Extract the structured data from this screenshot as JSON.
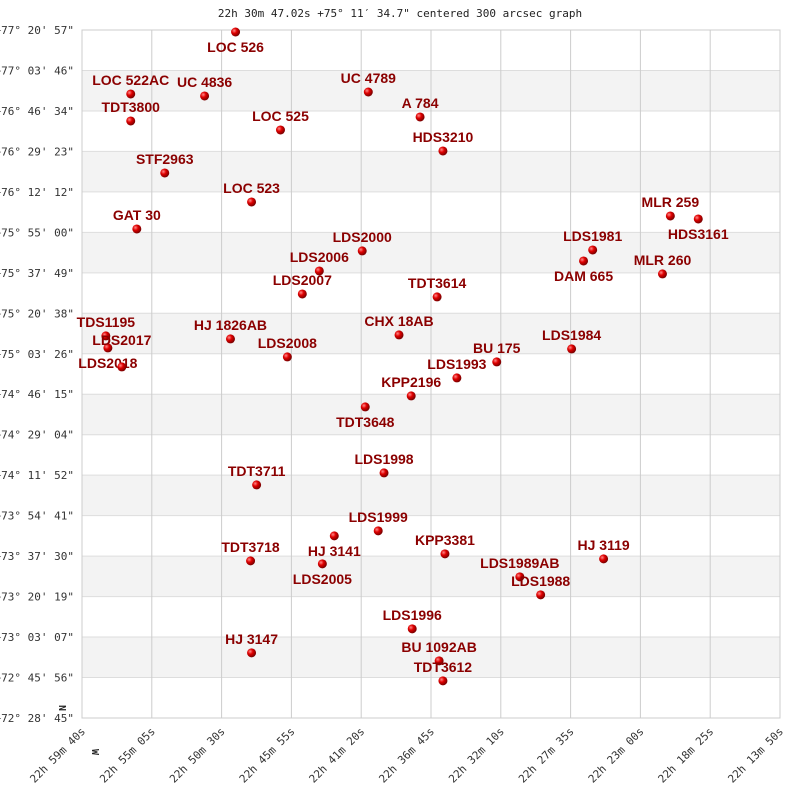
{
  "chart_data": {
    "type": "scatter",
    "title": "22h 30m 47.02s +75° 11′ 34.7\" centered 300 arcsec graph",
    "x_ticks": [
      "22h 59m 40s",
      "22h 55m 05s",
      "22h 50m 30s",
      "22h 45m 55s",
      "22h 41m 20s",
      "22h 36m 45s",
      "22h 32m 10s",
      "22h 27m 35s",
      "22h 23m 00s",
      "22h 18m 25s",
      "22h 13m 50s"
    ],
    "y_ticks": [
      "+77° 20' 57\"",
      "+77° 03' 46\"",
      "+76° 46' 34\"",
      "+76° 29' 23\"",
      "+76° 12' 12\"",
      "+75° 55' 00\"",
      "+75° 37' 49\"",
      "+75° 20' 38\"",
      "+75° 03' 26\"",
      "+74° 46' 15\"",
      "+74° 29' 04\"",
      "+74° 11' 52\"",
      "+73° 54' 41\"",
      "+73° 37' 30\"",
      "+73° 20' 19\"",
      "+73° 03' 07\"",
      "+72° 45' 56\"",
      "+72° 28' 45\""
    ],
    "x_direction": "RA decreasing to the right",
    "grid": true,
    "compass": {
      "north": "N",
      "west": "W"
    },
    "colors": {
      "point": "#dd0000",
      "label": "#8b0000",
      "band": "#f3f3f3",
      "grid": "#cccccc"
    },
    "points": [
      {
        "name": "LOC 526",
        "ra": "22h 49m 35s",
        "dec": "+77° 20' 06\""
      },
      {
        "name": "LOC 522AC",
        "ra": "22h 56m 28s",
        "dec": "+76° 53' 47\""
      },
      {
        "name": "UC 4836",
        "ra": "22h 51m 37s",
        "dec": "+76° 52' 56\""
      },
      {
        "name": "UC 4789",
        "ra": "22h 40m 52s",
        "dec": "+76° 54' 37\""
      },
      {
        "name": "A  784",
        "ra": "22h 37m 28s",
        "dec": "+76° 44' 01\""
      },
      {
        "name": "TDT3800",
        "ra": "22h 56m 28s",
        "dec": "+76° 42' 19\""
      },
      {
        "name": "LOC 525",
        "ra": "22h 46m 38s",
        "dec": "+76° 38' 29\""
      },
      {
        "name": "HDS3210",
        "ra": "22h 35m 58s",
        "dec": "+76° 29' 34\""
      },
      {
        "name": "STF2963",
        "ra": "22h 54m 14s",
        "dec": "+76° 20' 14\""
      },
      {
        "name": "LOC 523",
        "ra": "22h 48m 32s",
        "dec": "+76° 07' 55\""
      },
      {
        "name": "MLR 259",
        "ra": "22h 21m 02s",
        "dec": "+76° 01' 58\""
      },
      {
        "name": "HDS3161",
        "ra": "22h 19m 12s",
        "dec": "+76° 00' 42\""
      },
      {
        "name": "GAT  30",
        "ra": "22h 56m 04s",
        "dec": "+75° 56' 27\""
      },
      {
        "name": "LDS2000",
        "ra": "22h 41m 16s",
        "dec": "+75° 47' 07\""
      },
      {
        "name": "LDS1981",
        "ra": "22h 26m 08s",
        "dec": "+75° 47' 32\""
      },
      {
        "name": "DAM 665",
        "ra": "22h 26m 44s",
        "dec": "+75° 42' 52\""
      },
      {
        "name": "LDS2006",
        "ra": "22h 44m 05s",
        "dec": "+75° 38' 37\""
      },
      {
        "name": "MLR 260",
        "ra": "22h 21m 33s",
        "dec": "+75° 37' 21\""
      },
      {
        "name": "LDS2007",
        "ra": "22h 45m 12s",
        "dec": "+75° 28' 51\""
      },
      {
        "name": "TDT3614",
        "ra": "22h 36m 21s",
        "dec": "+75° 27' 35\""
      },
      {
        "name": "HJ 1826AB",
        "ra": "22h 49m 55s",
        "dec": "+75° 09' 45\""
      },
      {
        "name": "CHX 18AB",
        "ra": "22h 38m 51s",
        "dec": "+75° 11' 27\""
      },
      {
        "name": "TDS1195",
        "ra": "22h 58m 06s",
        "dec": "+75° 11' 01\""
      },
      {
        "name": "LDS2018",
        "ra": "22h 57m 58s",
        "dec": "+75° 05' 56\""
      },
      {
        "name": "LDS2017",
        "ra": "22h 57m 03s",
        "dec": "+74° 57' 52\""
      },
      {
        "name": "LDS2008",
        "ra": "22h 46m 11s",
        "dec": "+75° 02' 06\""
      },
      {
        "name": "LDS1984",
        "ra": "22h 27m 31s",
        "dec": "+75° 05' 30\""
      },
      {
        "name": "BU  175",
        "ra": "22h 32m 26s",
        "dec": "+74° 59' 59\""
      },
      {
        "name": "LDS1993",
        "ra": "22h 35m 03s",
        "dec": "+74° 53' 11\""
      },
      {
        "name": "KPP2196",
        "ra": "22h 38m 03s",
        "dec": "+74° 45' 33\""
      },
      {
        "name": "TDT3648",
        "ra": "22h 41m 04s",
        "dec": "+74° 40' 53\""
      },
      {
        "name": "LDS1998",
        "ra": "22h 39m 50s",
        "dec": "+74° 12' 51\""
      },
      {
        "name": "TDT3711",
        "ra": "22h 48m 12s",
        "dec": "+74° 07' 45\""
      },
      {
        "name": "LDS1999",
        "ra": "22h 40m 13s",
        "dec": "+73° 48' 14\""
      },
      {
        "name": "HJ 3141",
        "ra": "22h 43m 06s",
        "dec": "+73° 46' 06\""
      },
      {
        "name": "KPP3381",
        "ra": "22h 35m 50s",
        "dec": "+73° 38' 28\""
      },
      {
        "name": "HJ 3119",
        "ra": "22h 25m 25s",
        "dec": "+73° 36' 20\""
      },
      {
        "name": "TDT3718",
        "ra": "22h 48m 36s",
        "dec": "+73° 35' 29\""
      },
      {
        "name": "LDS2005",
        "ra": "22h 43m 53s",
        "dec": "+73° 34' 13\""
      },
      {
        "name": "LDS1989AB",
        "ra": "22h 30m 55s",
        "dec": "+73° 28' 42\""
      },
      {
        "name": "LDS1988",
        "ra": "22h 29m 33s",
        "dec": "+73° 21' 03\""
      },
      {
        "name": "LDS1996",
        "ra": "22h 37m 59s",
        "dec": "+73° 06' 37\""
      },
      {
        "name": "HJ 3147",
        "ra": "22h 48m 32s",
        "dec": "+72° 56' 25\""
      },
      {
        "name": "BU 1092AB",
        "ra": "22h 36m 13s",
        "dec": "+72° 53' 02\""
      },
      {
        "name": "TDT3612",
        "ra": "22h 35m 58s",
        "dec": "+72° 44' 32\""
      }
    ]
  }
}
